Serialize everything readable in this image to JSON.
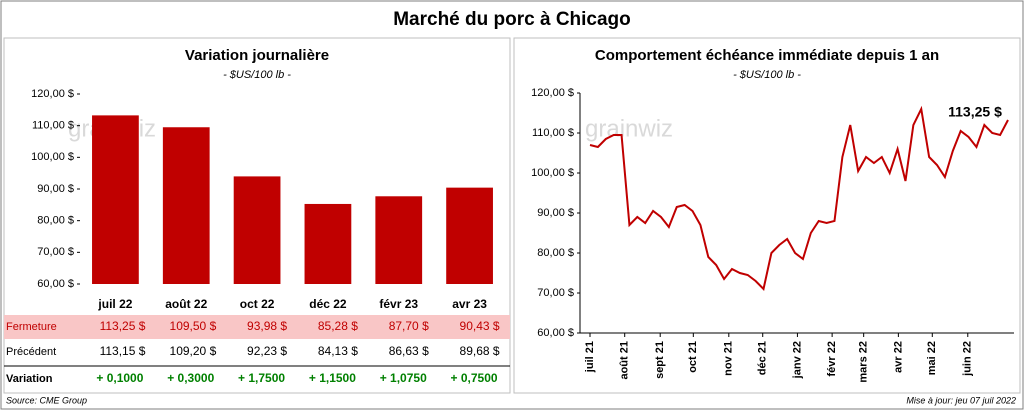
{
  "title": "Marché du porc à Chicago",
  "watermark": "grainwiz",
  "source": "Source: CME Group",
  "updated": "Mise à jour: jeu 07 juil 2022",
  "chart_data": [
    {
      "type": "bar",
      "title": "Variation journalière",
      "subtitle": "- $US/100 lb -",
      "categories": [
        "juil 22",
        "août 22",
        "oct 22",
        "déc 22",
        "févr 23",
        "avr 23"
      ],
      "values": [
        113.25,
        109.5,
        93.98,
        85.28,
        87.7,
        90.43
      ],
      "value_labels": [
        "113,25  $",
        "109,50  $",
        "93,98  $",
        "85,28  $",
        "87,70  $",
        "90,43  $"
      ],
      "color": "#c00000",
      "ylim": [
        60,
        120
      ],
      "yticks": [
        {
          "value": 60,
          "label": "60,00 $"
        },
        {
          "value": 70,
          "label": "70,00 $"
        },
        {
          "value": 80,
          "label": "80,00 $"
        },
        {
          "value": 90,
          "label": "90,00 $"
        },
        {
          "value": 100,
          "label": "100,00 $"
        },
        {
          "value": 110,
          "label": "110,00 $"
        },
        {
          "value": 120,
          "label": "120,00 $"
        }
      ]
    },
    {
      "type": "line",
      "title": "Comportement  échéance immédiate depuis 1 an",
      "subtitle": "- $US/100 lb -",
      "annotation": "113,25 $",
      "color": "#c00000",
      "values": [
        107,
        106.5,
        108.5,
        109.5,
        109.5,
        87,
        89,
        87.5,
        90.5,
        89,
        86.5,
        91.5,
        92,
        90.5,
        87,
        79,
        77,
        73.5,
        76,
        75,
        74.5,
        73,
        71,
        80,
        82,
        83.5,
        80,
        78.5,
        85,
        88,
        87.5,
        88,
        104,
        112,
        100.5,
        104,
        102.5,
        104,
        100,
        106,
        98,
        112,
        116,
        104,
        102,
        99,
        105.5,
        110.5,
        109,
        106.5,
        112,
        110,
        109.5,
        113.25
      ],
      "xlim": [
        0,
        53
      ],
      "xticks": [
        {
          "value": 0,
          "label": "juil 21"
        },
        {
          "value": 4.4,
          "label": "août 21"
        },
        {
          "value": 8.9,
          "label": "sept 21"
        },
        {
          "value": 13.1,
          "label": "oct 21"
        },
        {
          "value": 17.6,
          "label": "nov 21"
        },
        {
          "value": 21.9,
          "label": "déc 21"
        },
        {
          "value": 26.3,
          "label": "janv 22"
        },
        {
          "value": 30.7,
          "label": "févr 22"
        },
        {
          "value": 34.7,
          "label": "mars 22"
        },
        {
          "value": 39.1,
          "label": "avr 22"
        },
        {
          "value": 43.4,
          "label": "mai 22"
        },
        {
          "value": 47.9,
          "label": "juin 22"
        }
      ],
      "ylim": [
        60,
        120
      ],
      "yticks": [
        {
          "value": 60,
          "label": "60,00 $"
        },
        {
          "value": 70,
          "label": "70,00 $"
        },
        {
          "value": 80,
          "label": "80,00 $"
        },
        {
          "value": 90,
          "label": "90,00 $"
        },
        {
          "value": 100,
          "label": "100,00 $"
        },
        {
          "value": 110,
          "label": "110,00 $"
        },
        {
          "value": 120,
          "label": "120,00 $"
        }
      ]
    }
  ],
  "table": {
    "row_labels": [
      "Fermeture",
      "Précédent",
      "Variation"
    ],
    "previous": [
      "113,15  $",
      "109,20  $",
      "92,23  $",
      "84,13  $",
      "86,63  $",
      "89,68  $"
    ],
    "variation": [
      "+ 0,1000",
      "+ 0,3000",
      "+ 1,7500",
      "+ 1,1500",
      "+ 1,0750",
      "+ 0,7500"
    ]
  }
}
